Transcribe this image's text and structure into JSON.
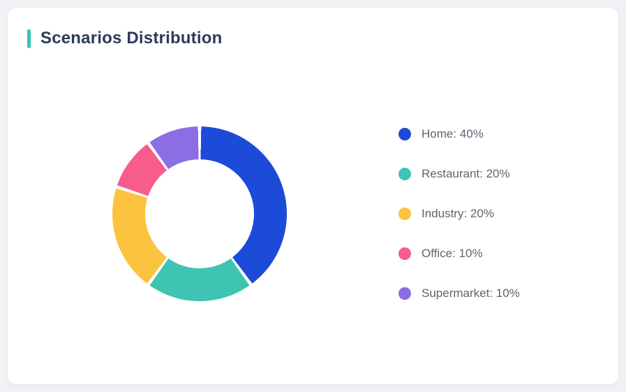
{
  "card": {
    "title": "Scenarios Distribution"
  },
  "colors": {
    "accent": "#36c2b4",
    "page_bg": "#f1f2f6",
    "card_bg": "#ffffff",
    "title_text": "#2e3a59",
    "legend_text": "#5e6470"
  },
  "chart_data": {
    "type": "pie",
    "subtype": "donut",
    "title": "Scenarios Distribution",
    "categories": [
      "Home",
      "Restaurant",
      "Industry",
      "Office",
      "Supermarket"
    ],
    "values": [
      40,
      20,
      20,
      10,
      10
    ],
    "unit": "%",
    "colors": [
      "#1c4bd9",
      "#3fc3b2",
      "#fbc33f",
      "#f75c8d",
      "#8c6de3"
    ],
    "legend": [
      "Home: 40%",
      "Restaurant: 20%",
      "Industry: 20%",
      "Office: 10%",
      "Supermarket: 10%"
    ],
    "legend_position": "right",
    "start_angle_deg": 0,
    "clockwise": true,
    "inner_radius_ratio": 0.62
  }
}
